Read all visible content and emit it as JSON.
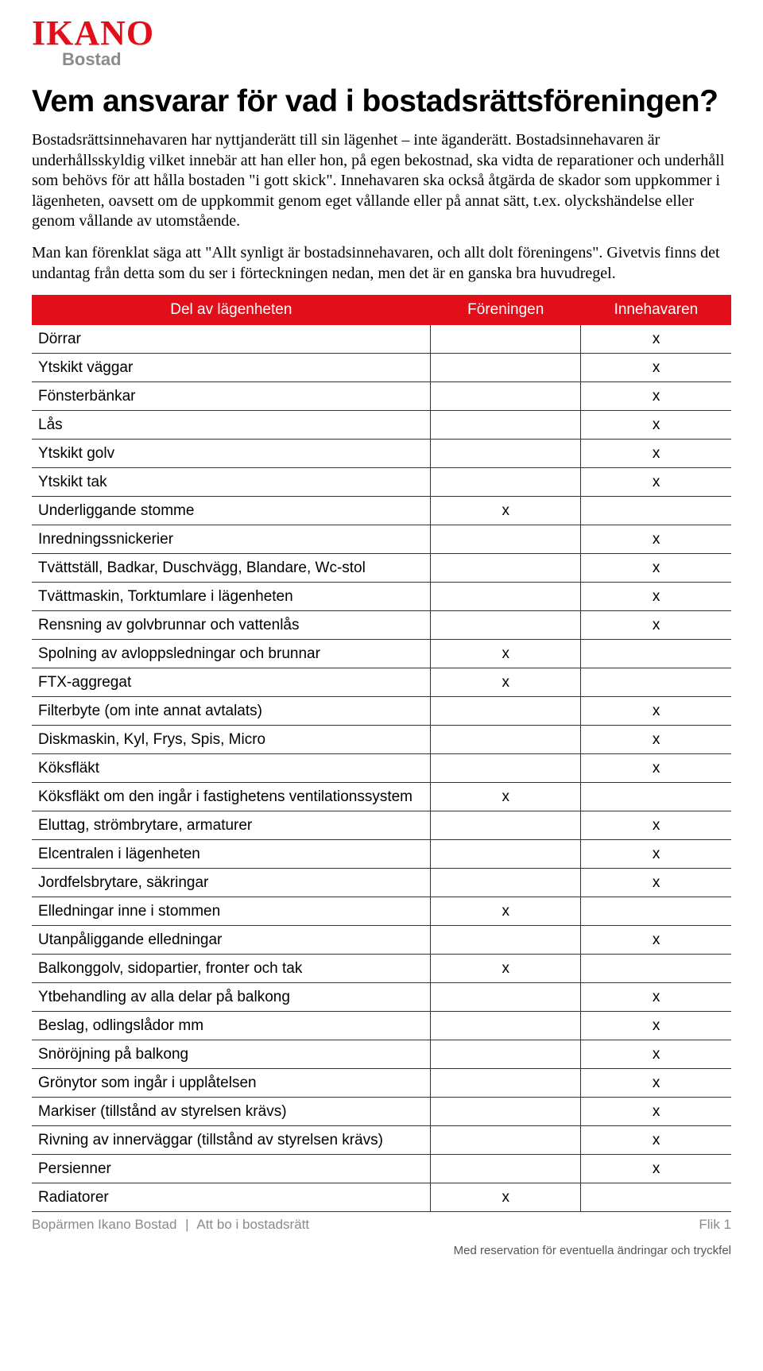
{
  "logo": {
    "main": "IKANO",
    "sub": "Bostad"
  },
  "title": "Vem ansvarar för vad i bostadsrättsföreningen?",
  "para1": "Bostadsrättsinnehavaren har nyttjanderätt till sin lägenhet – inte äganderätt. Bostadsinnehavaren är underhållsskyldig vilket innebär att han eller hon, på egen bekostnad, ska vidta de reparationer och underhåll som behövs för att hålla bostaden \"i gott skick\". Innehavaren ska också åtgärda de skador som uppkommer i lägenheten, oavsett om de uppkommit genom eget vållande eller på annat sätt, t.ex. olyckshändelse eller genom vållande av utomstående.",
  "para2": "Man kan förenklat säga att \"Allt synligt är bostadsinnehavaren, och allt dolt föreningens\". Givetvis finns det undantag från detta som du ser i förteckningen nedan, men det är en ganska bra huvudregel.",
  "table": {
    "columns": [
      "Del av lägenheten",
      "Föreningen",
      "Innehavaren"
    ],
    "mark": "x",
    "rows": [
      {
        "item": "Dörrar",
        "assoc": "",
        "owner": "x"
      },
      {
        "item": "Ytskikt väggar",
        "assoc": "",
        "owner": "x"
      },
      {
        "item": "Fönsterbänkar",
        "assoc": "",
        "owner": "x"
      },
      {
        "item": "Lås",
        "assoc": "",
        "owner": "x"
      },
      {
        "item": "Ytskikt golv",
        "assoc": "",
        "owner": "x"
      },
      {
        "item": "Ytskikt tak",
        "assoc": "",
        "owner": "x"
      },
      {
        "item": "Underliggande stomme",
        "assoc": "x",
        "owner": ""
      },
      {
        "item": "Inredningssnickerier",
        "assoc": "",
        "owner": "x"
      },
      {
        "item": "Tvättställ, Badkar, Duschvägg, Blandare, Wc-stol",
        "assoc": "",
        "owner": "x"
      },
      {
        "item": "Tvättmaskin, Torktumlare i lägenheten",
        "assoc": "",
        "owner": "x"
      },
      {
        "item": "Rensning av golvbrunnar och vattenlås",
        "assoc": "",
        "owner": "x"
      },
      {
        "item": "Spolning av avloppsledningar och brunnar",
        "assoc": "x",
        "owner": ""
      },
      {
        "item": "FTX-aggregat",
        "assoc": "x",
        "owner": ""
      },
      {
        "item": "Filterbyte (om inte annat avtalats)",
        "assoc": "",
        "owner": "x"
      },
      {
        "item": "Diskmaskin, Kyl, Frys, Spis, Micro",
        "assoc": "",
        "owner": "x"
      },
      {
        "item": "Köksfläkt",
        "assoc": "",
        "owner": "x"
      },
      {
        "item": "Köksfläkt om den ingår i fastighetens ventilationssystem",
        "assoc": "x",
        "owner": ""
      },
      {
        "item": "Eluttag, strömbrytare, armaturer",
        "assoc": "",
        "owner": "x"
      },
      {
        "item": "Elcentralen i lägenheten",
        "assoc": "",
        "owner": "x"
      },
      {
        "item": "Jordfelsbrytare, säkringar",
        "assoc": "",
        "owner": "x"
      },
      {
        "item": "Elledningar inne i stommen",
        "assoc": "x",
        "owner": ""
      },
      {
        "item": "Utanpåliggande elledningar",
        "assoc": "",
        "owner": "x"
      },
      {
        "item": "Balkonggolv, sidopartier, fronter och tak",
        "assoc": "x",
        "owner": ""
      },
      {
        "item": "Ytbehandling av alla delar på balkong",
        "assoc": "",
        "owner": "x"
      },
      {
        "item": "Beslag, odlingslådor mm",
        "assoc": "",
        "owner": "x"
      },
      {
        "item": "Snöröjning på balkong",
        "assoc": "",
        "owner": "x"
      },
      {
        "item": "Grönytor som ingår i upplåtelsen",
        "assoc": "",
        "owner": "x"
      },
      {
        "item": "Markiser (tillstånd av styrelsen krävs)",
        "assoc": "",
        "owner": "x"
      },
      {
        "item": "Rivning av innerväggar (tillstånd av styrelsen krävs)",
        "assoc": "",
        "owner": "x"
      },
      {
        "item": "Persienner",
        "assoc": "",
        "owner": "x"
      },
      {
        "item": "Radiatorer",
        "assoc": "x",
        "owner": ""
      }
    ],
    "header_bg": "#e20f1a",
    "header_color": "#ffffff",
    "border_color": "#333333"
  },
  "footer": {
    "left1": "Bopärmen Ikano Bostad",
    "left2": "Att bo i bostadsrätt",
    "right": "Flik 1"
  },
  "disclaimer": "Med reservation för eventuella ändringar och tryckfel"
}
